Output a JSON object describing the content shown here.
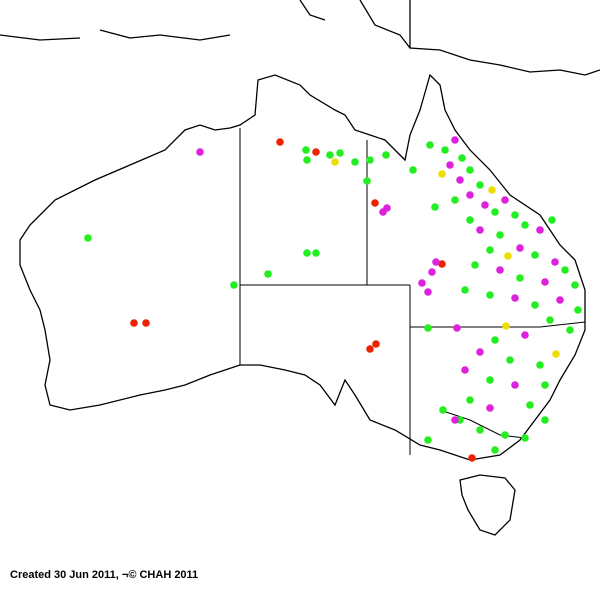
{
  "caption": "Created 30 Jun 2011, ¬© CHAH 2011"
}
